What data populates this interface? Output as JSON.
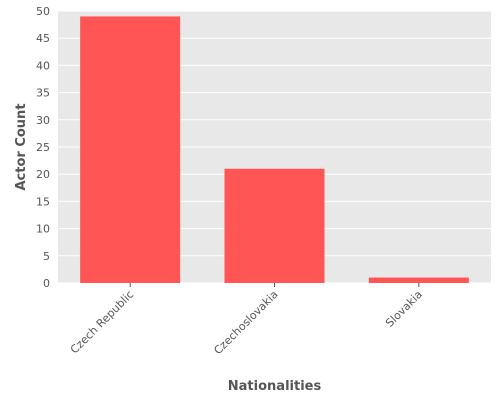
{
  "chart_data": {
    "type": "bar",
    "categories": [
      "Czech Republic",
      "Czechoslovakia",
      "Slovakia"
    ],
    "values": [
      49,
      21,
      1
    ],
    "xlabel": "Nationalities",
    "ylabel": "Actor Count",
    "ylim": [
      0,
      50
    ],
    "yticks": [
      0,
      5,
      10,
      15,
      20,
      25,
      30,
      35,
      40,
      45,
      50
    ],
    "grid": true,
    "colors": {
      "bar": "#ff5555",
      "background": "#e8e8e8",
      "grid": "#ffffff"
    }
  }
}
